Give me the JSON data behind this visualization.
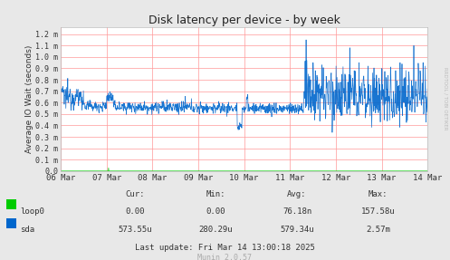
{
  "title": "Disk latency per device - by week",
  "ylabel": "Average IO Wait (seconds)",
  "bg_color": "#e8e8e8",
  "plot_bg_color": "#ffffff",
  "grid_color": "#ff9999",
  "title_color": "#222222",
  "text_color": "#333333",
  "ytick_labels": [
    "0.0",
    "0.1 m",
    "0.2 m",
    "0.3 m",
    "0.4 m",
    "0.5 m",
    "0.6 m",
    "0.7 m",
    "0.8 m",
    "0.9 m",
    "1.0 m",
    "1.1 m",
    "1.2 m"
  ],
  "ytick_values": [
    0.0,
    0.0001,
    0.0002,
    0.0003,
    0.0004,
    0.0005,
    0.0006,
    0.0007,
    0.0008,
    0.0009,
    0.001,
    0.0011,
    0.0012
  ],
  "xtick_labels": [
    "06 Mar",
    "07 Mar",
    "08 Mar",
    "09 Mar",
    "10 Mar",
    "11 Mar",
    "12 Mar",
    "13 Mar",
    "14 Mar"
  ],
  "ymax": 0.00126,
  "legend": [
    {
      "label": "loop0",
      "color": "#00cc00"
    },
    {
      "label": "sda",
      "color": "#0066cc"
    }
  ],
  "table_headers": [
    "Cur:",
    "Min:",
    "Avg:",
    "Max:"
  ],
  "table_loop0": [
    "0.00",
    "0.00",
    "76.18n",
    "157.58u"
  ],
  "table_sda": [
    "573.55u",
    "280.29u",
    "579.34u",
    "2.57m"
  ],
  "last_update": "Last update: Fri Mar 14 13:00:18 2025",
  "munin_version": "Munin 2.0.57",
  "rrdtool_label": "RRDTOOL / TOBI OETIKER",
  "sda_line_color": "#0066cc",
  "loop0_line_color": "#00cc00"
}
